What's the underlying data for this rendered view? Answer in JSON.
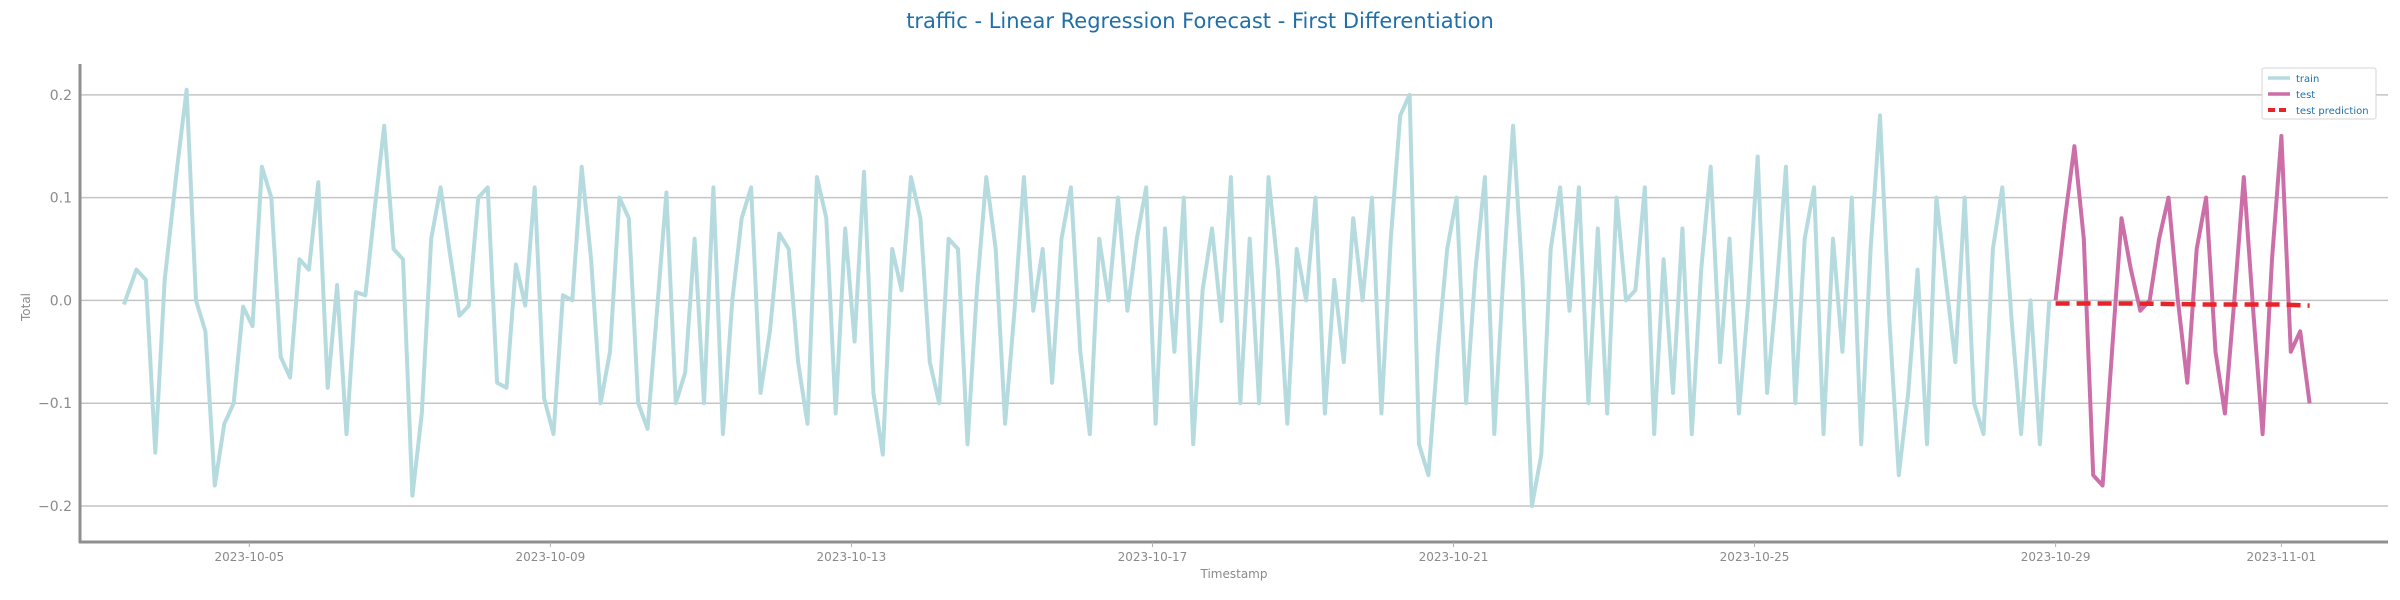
{
  "chart_data": {
    "type": "line",
    "title": "traffic - Linear Regression Forecast - First Differentiation",
    "xlabel": "Timestamp",
    "ylabel": "Total",
    "x_range": [
      "2023-10-02T18:00",
      "2023-11-02T10:00"
    ],
    "ylim": [
      -0.235,
      0.23
    ],
    "yticks": [
      -0.2,
      -0.1,
      0.0,
      0.1,
      0.2
    ],
    "ytick_labels": [
      "−0.2",
      "−0.1",
      "0.0",
      "0.1",
      "0.2"
    ],
    "xtick_dates": [
      "2023-10-05",
      "2023-10-09",
      "2023-10-13",
      "2023-10-17",
      "2023-10-21",
      "2023-10-25",
      "2023-10-29",
      "2023-11-01"
    ],
    "xtick_labels": [
      "2023-10-05",
      "2023-10-09",
      "2023-10-13",
      "2023-10-17",
      "2023-10-21",
      "2023-10-25",
      "2023-10-29",
      "2023-11-01"
    ],
    "grid": "horizontal",
    "legend_position": "top-right",
    "series": [
      {
        "name": "train",
        "color": "#b6dbdf",
        "style": "solid",
        "points": [
          [
            "2023-10-03T08:00",
            -0.004
          ],
          [
            "2023-10-03T12:00",
            0.03
          ],
          [
            "2023-10-03T15:00",
            0.02
          ],
          [
            "2023-10-03T18:00",
            -0.148
          ],
          [
            "2023-10-03T21:00",
            0.02
          ],
          [
            "2023-10-04T01:00",
            0.13
          ],
          [
            "2023-10-04T04:00",
            0.205
          ],
          [
            "2023-10-04T07:00",
            0.0
          ],
          [
            "2023-10-04T10:00",
            -0.03
          ],
          [
            "2023-10-04T13:00",
            -0.18
          ],
          [
            "2023-10-04T16:00",
            -0.12
          ],
          [
            "2023-10-04T19:00",
            -0.1
          ],
          [
            "2023-10-04T22:00",
            -0.006
          ],
          [
            "2023-10-05T01:00",
            -0.025
          ],
          [
            "2023-10-05T04:00",
            0.13
          ],
          [
            "2023-10-05T07:00",
            0.1
          ],
          [
            "2023-10-05T10:00",
            -0.055
          ],
          [
            "2023-10-05T13:00",
            -0.075
          ],
          [
            "2023-10-05T16:00",
            0.04
          ],
          [
            "2023-10-05T19:00",
            0.03
          ],
          [
            "2023-10-05T22:00",
            0.115
          ],
          [
            "2023-10-06T01:00",
            -0.085
          ],
          [
            "2023-10-06T04:00",
            0.015
          ],
          [
            "2023-10-06T07:00",
            -0.13
          ],
          [
            "2023-10-06T10:00",
            0.008
          ],
          [
            "2023-10-06T13:00",
            0.005
          ],
          [
            "2023-10-06T16:00",
            0.09
          ],
          [
            "2023-10-06T19:00",
            0.17
          ],
          [
            "2023-10-06T22:00",
            0.05
          ],
          [
            "2023-10-07T01:00",
            0.04
          ],
          [
            "2023-10-07T04:00",
            -0.19
          ],
          [
            "2023-10-07T07:00",
            -0.11
          ],
          [
            "2023-10-07T10:00",
            0.06
          ],
          [
            "2023-10-07T13:00",
            0.11
          ],
          [
            "2023-10-07T16:00",
            0.045
          ],
          [
            "2023-10-07T19:00",
            -0.015
          ],
          [
            "2023-10-07T22:00",
            -0.005
          ],
          [
            "2023-10-08T01:00",
            0.1
          ],
          [
            "2023-10-08T04:00",
            0.11
          ],
          [
            "2023-10-08T07:00",
            -0.08
          ],
          [
            "2023-10-08T10:00",
            -0.085
          ],
          [
            "2023-10-08T13:00",
            0.035
          ],
          [
            "2023-10-08T16:00",
            -0.005
          ],
          [
            "2023-10-08T19:00",
            0.11
          ],
          [
            "2023-10-08T22:00",
            -0.095
          ],
          [
            "2023-10-09T01:00",
            -0.13
          ],
          [
            "2023-10-09T04:00",
            0.005
          ],
          [
            "2023-10-09T07:00",
            0.0
          ],
          [
            "2023-10-09T10:00",
            0.13
          ],
          [
            "2023-10-09T13:00",
            0.04
          ],
          [
            "2023-10-09T16:00",
            -0.1
          ],
          [
            "2023-10-09T19:00",
            -0.05
          ],
          [
            "2023-10-09T22:00",
            0.1
          ],
          [
            "2023-10-10T01:00",
            0.08
          ],
          [
            "2023-10-10T04:00",
            -0.1
          ],
          [
            "2023-10-10T07:00",
            -0.125
          ],
          [
            "2023-10-10T10:00",
            -0.01
          ],
          [
            "2023-10-10T13:00",
            0.105
          ],
          [
            "2023-10-10T16:00",
            -0.1
          ],
          [
            "2023-10-10T19:00",
            -0.07
          ],
          [
            "2023-10-10T22:00",
            0.06
          ],
          [
            "2023-10-11T01:00",
            -0.1
          ],
          [
            "2023-10-11T04:00",
            0.11
          ],
          [
            "2023-10-11T07:00",
            -0.13
          ],
          [
            "2023-10-11T10:00",
            0.0
          ],
          [
            "2023-10-11T13:00",
            0.08
          ],
          [
            "2023-10-11T16:00",
            0.11
          ],
          [
            "2023-10-11T19:00",
            -0.09
          ],
          [
            "2023-10-11T22:00",
            -0.03
          ],
          [
            "2023-10-12T01:00",
            0.065
          ],
          [
            "2023-10-12T04:00",
            0.05
          ],
          [
            "2023-10-12T07:00",
            -0.06
          ],
          [
            "2023-10-12T10:00",
            -0.12
          ],
          [
            "2023-10-12T13:00",
            0.12
          ],
          [
            "2023-10-12T16:00",
            0.08
          ],
          [
            "2023-10-12T19:00",
            -0.11
          ],
          [
            "2023-10-12T22:00",
            0.07
          ],
          [
            "2023-10-13T01:00",
            -0.04
          ],
          [
            "2023-10-13T04:00",
            0.125
          ],
          [
            "2023-10-13T07:00",
            -0.09
          ],
          [
            "2023-10-13T10:00",
            -0.15
          ],
          [
            "2023-10-13T13:00",
            0.05
          ],
          [
            "2023-10-13T16:00",
            0.01
          ],
          [
            "2023-10-13T19:00",
            0.12
          ],
          [
            "2023-10-13T22:00",
            0.08
          ],
          [
            "2023-10-14T01:00",
            -0.06
          ],
          [
            "2023-10-14T04:00",
            -0.1
          ],
          [
            "2023-10-14T07:00",
            0.06
          ],
          [
            "2023-10-14T10:00",
            0.05
          ],
          [
            "2023-10-14T13:00",
            -0.14
          ],
          [
            "2023-10-14T16:00",
            0.01
          ],
          [
            "2023-10-14T19:00",
            0.12
          ],
          [
            "2023-10-14T22:00",
            0.05
          ],
          [
            "2023-10-15T01:00",
            -0.12
          ],
          [
            "2023-10-15T04:00",
            -0.01
          ],
          [
            "2023-10-15T07:00",
            0.12
          ],
          [
            "2023-10-15T10:00",
            -0.01
          ],
          [
            "2023-10-15T13:00",
            0.05
          ],
          [
            "2023-10-15T16:00",
            -0.08
          ],
          [
            "2023-10-15T19:00",
            0.06
          ],
          [
            "2023-10-15T22:00",
            0.11
          ],
          [
            "2023-10-16T01:00",
            -0.05
          ],
          [
            "2023-10-16T04:00",
            -0.13
          ],
          [
            "2023-10-16T07:00",
            0.06
          ],
          [
            "2023-10-16T10:00",
            0.0
          ],
          [
            "2023-10-16T13:00",
            0.1
          ],
          [
            "2023-10-16T16:00",
            -0.01
          ],
          [
            "2023-10-16T19:00",
            0.06
          ],
          [
            "2023-10-16T22:00",
            0.11
          ],
          [
            "2023-10-17T01:00",
            -0.12
          ],
          [
            "2023-10-17T04:00",
            0.07
          ],
          [
            "2023-10-17T07:00",
            -0.05
          ],
          [
            "2023-10-17T10:00",
            0.1
          ],
          [
            "2023-10-17T13:00",
            -0.14
          ],
          [
            "2023-10-17T16:00",
            0.01
          ],
          [
            "2023-10-17T19:00",
            0.07
          ],
          [
            "2023-10-17T22:00",
            -0.02
          ],
          [
            "2023-10-18T01:00",
            0.12
          ],
          [
            "2023-10-18T04:00",
            -0.1
          ],
          [
            "2023-10-18T07:00",
            0.06
          ],
          [
            "2023-10-18T10:00",
            -0.1
          ],
          [
            "2023-10-18T13:00",
            0.12
          ],
          [
            "2023-10-18T16:00",
            0.03
          ],
          [
            "2023-10-18T19:00",
            -0.12
          ],
          [
            "2023-10-18T22:00",
            0.05
          ],
          [
            "2023-10-19T01:00",
            0.0
          ],
          [
            "2023-10-19T04:00",
            0.1
          ],
          [
            "2023-10-19T07:00",
            -0.11
          ],
          [
            "2023-10-19T10:00",
            0.02
          ],
          [
            "2023-10-19T13:00",
            -0.06
          ],
          [
            "2023-10-19T16:00",
            0.08
          ],
          [
            "2023-10-19T19:00",
            0.0
          ],
          [
            "2023-10-19T22:00",
            0.1
          ],
          [
            "2023-10-20T01:00",
            -0.11
          ],
          [
            "2023-10-20T04:00",
            0.06
          ],
          [
            "2023-10-20T07:00",
            0.18
          ],
          [
            "2023-10-20T10:00",
            0.2
          ],
          [
            "2023-10-20T13:00",
            -0.14
          ],
          [
            "2023-10-20T16:00",
            -0.17
          ],
          [
            "2023-10-20T19:00",
            -0.05
          ],
          [
            "2023-10-20T22:00",
            0.05
          ],
          [
            "2023-10-21T01:00",
            0.1
          ],
          [
            "2023-10-21T04:00",
            -0.1
          ],
          [
            "2023-10-21T07:00",
            0.03
          ],
          [
            "2023-10-21T10:00",
            0.12
          ],
          [
            "2023-10-21T13:00",
            -0.13
          ],
          [
            "2023-10-21T16:00",
            0.03
          ],
          [
            "2023-10-21T19:00",
            0.17
          ],
          [
            "2023-10-21T22:00",
            0.02
          ],
          [
            "2023-10-22T01:00",
            -0.2
          ],
          [
            "2023-10-22T04:00",
            -0.15
          ],
          [
            "2023-10-22T07:00",
            0.05
          ],
          [
            "2023-10-22T10:00",
            0.11
          ],
          [
            "2023-10-22T13:00",
            -0.01
          ],
          [
            "2023-10-22T16:00",
            0.11
          ],
          [
            "2023-10-22T19:00",
            -0.1
          ],
          [
            "2023-10-22T22:00",
            0.07
          ],
          [
            "2023-10-23T01:00",
            -0.11
          ],
          [
            "2023-10-23T04:00",
            0.1
          ],
          [
            "2023-10-23T07:00",
            0.0
          ],
          [
            "2023-10-23T10:00",
            0.01
          ],
          [
            "2023-10-23T13:00",
            0.11
          ],
          [
            "2023-10-23T16:00",
            -0.13
          ],
          [
            "2023-10-23T19:00",
            0.04
          ],
          [
            "2023-10-23T22:00",
            -0.09
          ],
          [
            "2023-10-24T01:00",
            0.07
          ],
          [
            "2023-10-24T04:00",
            -0.13
          ],
          [
            "2023-10-24T07:00",
            0.03
          ],
          [
            "2023-10-24T10:00",
            0.13
          ],
          [
            "2023-10-24T13:00",
            -0.06
          ],
          [
            "2023-10-24T16:00",
            0.06
          ],
          [
            "2023-10-24T19:00",
            -0.11
          ],
          [
            "2023-10-24T22:00",
            0.0
          ],
          [
            "2023-10-25T01:00",
            0.14
          ],
          [
            "2023-10-25T04:00",
            -0.09
          ],
          [
            "2023-10-25T07:00",
            0.01
          ],
          [
            "2023-10-25T10:00",
            0.13
          ],
          [
            "2023-10-25T13:00",
            -0.1
          ],
          [
            "2023-10-25T16:00",
            0.06
          ],
          [
            "2023-10-25T19:00",
            0.11
          ],
          [
            "2023-10-25T22:00",
            -0.13
          ],
          [
            "2023-10-26T01:00",
            0.06
          ],
          [
            "2023-10-26T04:00",
            -0.05
          ],
          [
            "2023-10-26T07:00",
            0.1
          ],
          [
            "2023-10-26T10:00",
            -0.14
          ],
          [
            "2023-10-26T13:00",
            0.05
          ],
          [
            "2023-10-26T16:00",
            0.18
          ],
          [
            "2023-10-26T19:00",
            -0.02
          ],
          [
            "2023-10-26T22:00",
            -0.17
          ],
          [
            "2023-10-27T01:00",
            -0.09
          ],
          [
            "2023-10-27T04:00",
            0.03
          ],
          [
            "2023-10-27T07:00",
            -0.14
          ],
          [
            "2023-10-27T10:00",
            0.1
          ],
          [
            "2023-10-27T13:00",
            0.02
          ],
          [
            "2023-10-27T16:00",
            -0.06
          ],
          [
            "2023-10-27T19:00",
            0.1
          ],
          [
            "2023-10-27T22:00",
            -0.1
          ],
          [
            "2023-10-28T01:00",
            -0.13
          ],
          [
            "2023-10-28T04:00",
            0.05
          ],
          [
            "2023-10-28T07:00",
            0.11
          ],
          [
            "2023-10-28T10:00",
            -0.02
          ],
          [
            "2023-10-28T13:00",
            -0.13
          ],
          [
            "2023-10-28T16:00",
            0.0
          ],
          [
            "2023-10-28T19:00",
            -0.14
          ],
          [
            "2023-10-28T22:00",
            0.0
          ]
        ]
      },
      {
        "name": "test",
        "color": "#cc6fa9",
        "style": "solid",
        "points": [
          [
            "2023-10-29T00:00",
            0.0
          ],
          [
            "2023-10-29T03:00",
            0.08
          ],
          [
            "2023-10-29T06:00",
            0.15
          ],
          [
            "2023-10-29T09:00",
            0.06
          ],
          [
            "2023-10-29T12:00",
            -0.17
          ],
          [
            "2023-10-29T15:00",
            -0.18
          ],
          [
            "2023-10-29T18:00",
            -0.05
          ],
          [
            "2023-10-29T21:00",
            0.08
          ],
          [
            "2023-10-30T00:00",
            0.03
          ],
          [
            "2023-10-30T03:00",
            -0.01
          ],
          [
            "2023-10-30T06:00",
            0.0
          ],
          [
            "2023-10-30T09:00",
            0.06
          ],
          [
            "2023-10-30T12:00",
            0.1
          ],
          [
            "2023-10-30T15:00",
            0.0
          ],
          [
            "2023-10-30T18:00",
            -0.08
          ],
          [
            "2023-10-30T21:00",
            0.05
          ],
          [
            "2023-10-31T00:00",
            0.1
          ],
          [
            "2023-10-31T03:00",
            -0.05
          ],
          [
            "2023-10-31T06:00",
            -0.11
          ],
          [
            "2023-10-31T09:00",
            0.0
          ],
          [
            "2023-10-31T12:00",
            0.12
          ],
          [
            "2023-10-31T15:00",
            -0.01
          ],
          [
            "2023-10-31T18:00",
            -0.13
          ],
          [
            "2023-10-31T21:00",
            0.04
          ],
          [
            "2023-11-01T00:00",
            0.16
          ],
          [
            "2023-11-01T03:00",
            -0.05
          ],
          [
            "2023-11-01T06:00",
            -0.03
          ],
          [
            "2023-11-01T09:00",
            -0.1
          ]
        ]
      },
      {
        "name": "test prediction",
        "color": "#e8242a",
        "style": "dashed",
        "points": [
          [
            "2023-10-29T00:00",
            -0.003
          ],
          [
            "2023-10-30T00:00",
            -0.003
          ],
          [
            "2023-10-31T00:00",
            -0.004
          ],
          [
            "2023-11-01T00:00",
            -0.004
          ],
          [
            "2023-11-01T09:00",
            -0.005
          ]
        ]
      }
    ]
  }
}
